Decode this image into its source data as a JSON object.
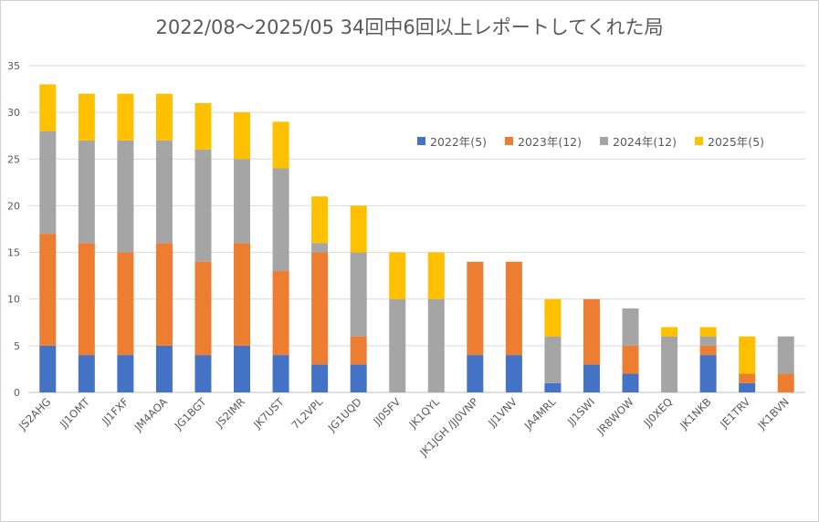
{
  "chart_data": {
    "type": "bar",
    "stacked": true,
    "title": "2022/08～2025/05 34回中6回以上レポートしてくれた局",
    "categories": [
      "JS2AHG",
      "JJ1OMT",
      "JJ1FXF",
      "JM4AOA",
      "JG1BGT",
      "JS2IMR",
      "JK7UST",
      "7L2VPL",
      "JG1UQD",
      "JJ0SFV",
      "JK1QYL",
      "JK1JGH /JJ0VNP",
      "JJ1VNV",
      "JA4MRL",
      "JJ1SWI",
      "JR8WOW",
      "JJ0XEQ",
      "JK1NKB",
      "JE1TRV",
      "JK1BVN"
    ],
    "series": [
      {
        "name": "2022年(5)",
        "color": "#4472c4",
        "values": [
          5,
          4,
          4,
          5,
          4,
          5,
          4,
          3,
          3,
          0,
          0,
          4,
          4,
          1,
          3,
          2,
          0,
          4,
          1,
          0
        ]
      },
      {
        "name": "2023年(12)",
        "color": "#ed7d31",
        "values": [
          12,
          12,
          11,
          11,
          10,
          11,
          9,
          12,
          3,
          0,
          0,
          10,
          10,
          0,
          7,
          3,
          0,
          1,
          1,
          2
        ]
      },
      {
        "name": "2024年(12)",
        "color": "#a5a5a5",
        "values": [
          11,
          11,
          12,
          11,
          12,
          9,
          11,
          1,
          9,
          10,
          10,
          0,
          0,
          5,
          0,
          4,
          6,
          1,
          0,
          4
        ]
      },
      {
        "name": "2025年(5)",
        "color": "#ffc000",
        "values": [
          5,
          5,
          5,
          5,
          5,
          5,
          5,
          5,
          5,
          5,
          5,
          0,
          0,
          4,
          0,
          0,
          1,
          1,
          4,
          0
        ]
      }
    ],
    "ylim": [
      0,
      35
    ],
    "yticks": [
      "0",
      "5",
      "10",
      "15",
      "20",
      "25",
      "30",
      "35"
    ],
    "grid": true,
    "legend_position": "right"
  }
}
